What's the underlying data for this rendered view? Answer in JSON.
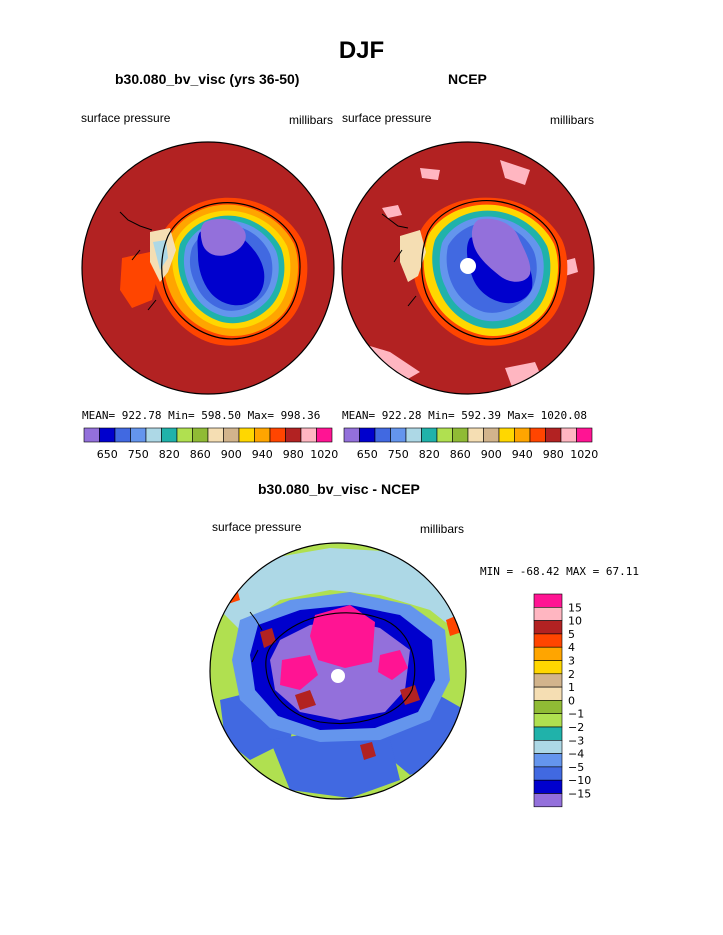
{
  "page": {
    "title": "DJF"
  },
  "chart_data": [
    {
      "type": "heatmap",
      "title": "b30.080_bv_visc (yrs 36-50)",
      "left_label": "surface pressure",
      "right_label": "millibars",
      "stats": "MEAN= 922.78  Min= 598.50  Max= 998.36",
      "colorbar_ticks": [
        "650",
        "750",
        "820",
        "860",
        "900",
        "940",
        "980",
        "1020"
      ],
      "colorbar_colors": [
        "#9370db",
        "#0000cd",
        "#4169e1",
        "#6495ed",
        "#add8e6",
        "#20b2aa",
        "#b0e050",
        "#90bb35",
        "#f5deb3",
        "#d2b48c",
        "#ffd700",
        "#ffa500",
        "#ff4500",
        "#b22222",
        "#ffb6c1",
        "#ff1493"
      ]
    },
    {
      "type": "heatmap",
      "title": "NCEP",
      "left_label": "surface pressure",
      "right_label": "millibars",
      "stats": "MEAN= 922.28  Min= 592.39  Max= 1020.08",
      "colorbar_ticks": [
        "650",
        "750",
        "820",
        "860",
        "900",
        "940",
        "980",
        "1020"
      ],
      "colorbar_colors": [
        "#9370db",
        "#0000cd",
        "#4169e1",
        "#6495ed",
        "#add8e6",
        "#20b2aa",
        "#b0e050",
        "#90bb35",
        "#f5deb3",
        "#d2b48c",
        "#ffd700",
        "#ffa500",
        "#ff4500",
        "#b22222",
        "#ffb6c1",
        "#ff1493"
      ]
    },
    {
      "type": "heatmap",
      "title": "b30.080_bv_visc - NCEP",
      "left_label": "surface pressure",
      "right_label": "millibars",
      "stats": "MIN = -68.42 MAX =  67.11",
      "colorbar_ticks": [
        "15",
        "10",
        "5",
        "4",
        "3",
        "2",
        "1",
        "0",
        "−1",
        "−2",
        "−3",
        "−4",
        "−5",
        "−10",
        "−15"
      ],
      "colorbar_colors": [
        "#ff1493",
        "#ffb6c1",
        "#b22222",
        "#ff4500",
        "#ffa500",
        "#ffd700",
        "#d2b48c",
        "#f5deb3",
        "#90bb35",
        "#b0e050",
        "#20b2aa",
        "#add8e6",
        "#6495ed",
        "#4169e1",
        "#0000cd",
        "#9370db"
      ]
    }
  ]
}
